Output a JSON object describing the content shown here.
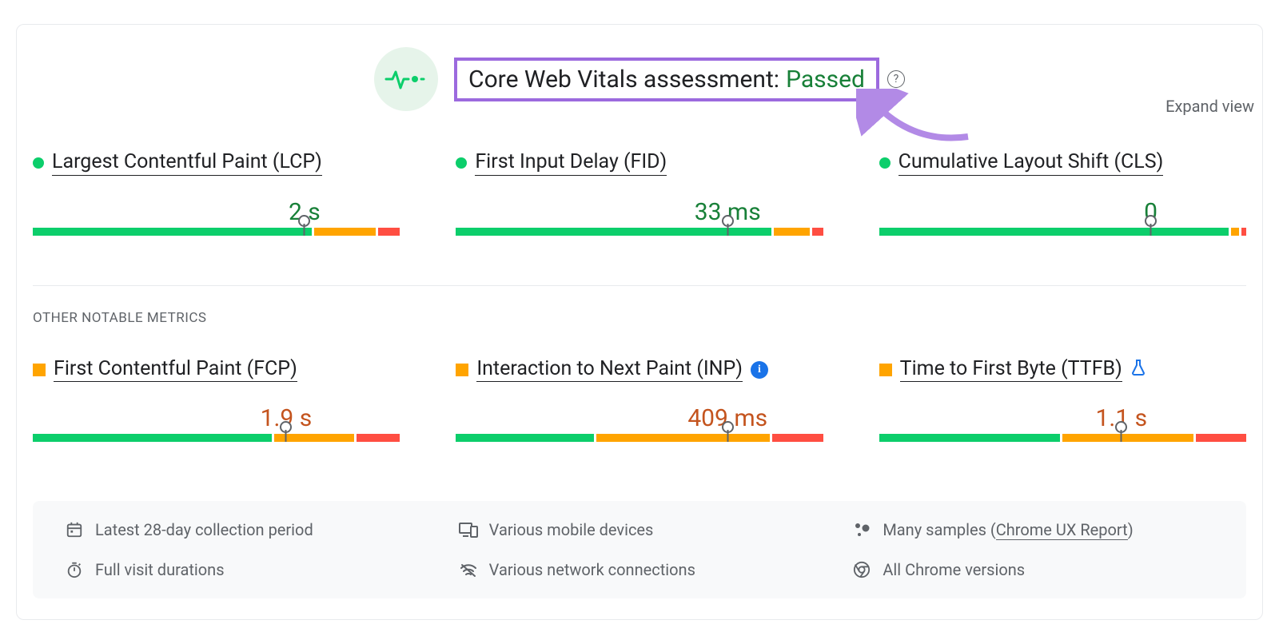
{
  "colors": {
    "good": "#0cce6b",
    "avg": "#ffa400",
    "poor": "#ff4e42",
    "avg_text": "#c4541e",
    "good_text": "#188038",
    "highlight_border": "#9c6ade",
    "info_blue": "#1a73e8",
    "muted": "#5f6368",
    "divider": "#e8eaed",
    "footer_bg": "#f8f9fa"
  },
  "header": {
    "label": "Core Web Vitals assessment:",
    "status": "Passed",
    "help_tooltip": "?"
  },
  "expand_label": "Expand view",
  "section_other_label": "OTHER NOTABLE METRICS",
  "core_metrics": [
    {
      "id": "lcp",
      "name": "Largest Contentful Paint (LCP)",
      "status": "good",
      "value": "2 s",
      "value_color": "#188038",
      "marker_pct": 74,
      "segments": [
        {
          "color": "#0cce6b",
          "pct": 77
        },
        {
          "color": "#ffa400",
          "pct": 17
        },
        {
          "color": "#ff4e42",
          "pct": 6
        }
      ]
    },
    {
      "id": "fid",
      "name": "First Input Delay (FID)",
      "status": "good",
      "value": "33 ms",
      "value_color": "#188038",
      "marker_pct": 74,
      "segments": [
        {
          "color": "#0cce6b",
          "pct": 87
        },
        {
          "color": "#ffa400",
          "pct": 10
        },
        {
          "color": "#ff4e42",
          "pct": 3
        }
      ]
    },
    {
      "id": "cls",
      "name": "Cumulative Layout Shift (CLS)",
      "status": "good",
      "value": "0",
      "value_color": "#188038",
      "marker_pct": 74,
      "segments": [
        {
          "color": "#0cce6b",
          "pct": 96.5
        },
        {
          "color": "#ffa400",
          "pct": 2.2
        },
        {
          "color": "#ff4e42",
          "pct": 1.3
        }
      ]
    }
  ],
  "other_metrics": [
    {
      "id": "fcp",
      "name": "First Contentful Paint (FCP)",
      "status": "avg",
      "value": "1.9 s",
      "value_color": "#c4541e",
      "marker_pct": 69,
      "segments": [
        {
          "color": "#0cce6b",
          "pct": 66
        },
        {
          "color": "#ffa400",
          "pct": 22
        },
        {
          "color": "#ff4e42",
          "pct": 12
        }
      ],
      "extra_icon": null
    },
    {
      "id": "inp",
      "name": "Interaction to Next Paint (INP)",
      "status": "avg",
      "value": "409 ms",
      "value_color": "#c4541e",
      "marker_pct": 74,
      "segments": [
        {
          "color": "#0cce6b",
          "pct": 38
        },
        {
          "color": "#ffa400",
          "pct": 48
        },
        {
          "color": "#ff4e42",
          "pct": 14
        }
      ],
      "extra_icon": "info"
    },
    {
      "id": "ttfb",
      "name": "Time to First Byte (TTFB)",
      "status": "avg",
      "value": "1.1 s",
      "value_color": "#c4541e",
      "marker_pct": 66,
      "segments": [
        {
          "color": "#0cce6b",
          "pct": 50
        },
        {
          "color": "#ffa400",
          "pct": 36
        },
        {
          "color": "#ff4e42",
          "pct": 14
        }
      ],
      "extra_icon": "flask"
    }
  ],
  "footer": {
    "items": [
      {
        "icon": "calendar",
        "text": "Latest 28-day collection period"
      },
      {
        "icon": "devices",
        "text": "Various mobile devices"
      },
      {
        "icon": "samples",
        "prefix": "Many samples (",
        "link": "Chrome UX Report",
        "suffix": ")"
      },
      {
        "icon": "timer",
        "text": "Full visit durations"
      },
      {
        "icon": "network",
        "text": "Various network connections"
      },
      {
        "icon": "chrome",
        "text": "All Chrome versions"
      }
    ]
  }
}
